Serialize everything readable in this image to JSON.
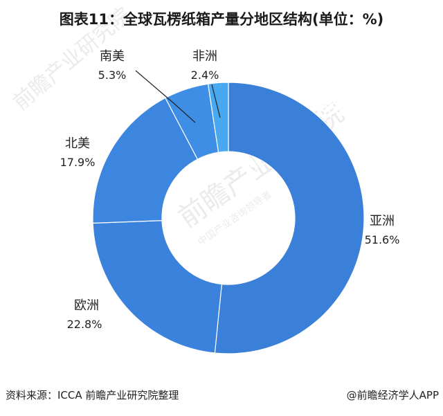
{
  "title": "图表11：全球瓦楞纸箱产量分地区结构(单位：%)",
  "chart_data": {
    "type": "pie",
    "donut": true,
    "title": "图表11：全球瓦楞纸箱产量分地区结构(单位：%)",
    "categories": [
      "亚洲",
      "欧洲",
      "北美",
      "南美",
      "非洲"
    ],
    "values": [
      51.6,
      22.8,
      17.9,
      5.3,
      2.4
    ],
    "value_labels": [
      "51.6%",
      "22.8%",
      "17.9%",
      "5.3%",
      "2.4%"
    ],
    "colors": [
      "#3a7fd8",
      "#3b82dc",
      "#3d86e0",
      "#3f8ee6",
      "#48a8f0"
    ],
    "legend": "none"
  },
  "footer": {
    "source": "资料来源：ICCA 前瞻产业研究院整理",
    "credit": "@前瞻经济学人APP"
  },
  "watermark": {
    "text": "前瞻产业研究院",
    "subtext": "中国产业咨询领导者"
  }
}
